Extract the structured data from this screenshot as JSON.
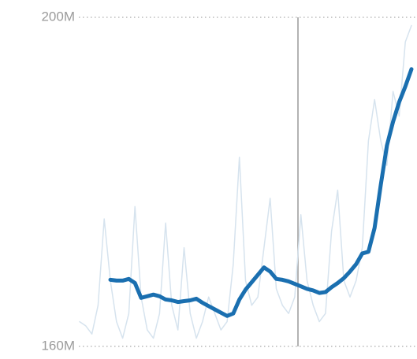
{
  "chart_data": {
    "type": "line",
    "categories": [
      null,
      null,
      null,
      null,
      null,
      null,
      null,
      null,
      null,
      null,
      null,
      null,
      null,
      null,
      null,
      null,
      null,
      null,
      null,
      null,
      null,
      null,
      null,
      null,
      null,
      null,
      null,
      null,
      null,
      null,
      null,
      null,
      null,
      null,
      null,
      null,
      null,
      null,
      null,
      null,
      null,
      null,
      null,
      null,
      null,
      null,
      null,
      null,
      null,
      null,
      null,
      null,
      null,
      null,
      null
    ],
    "series": [
      {
        "color": "#d6e3ee",
        "values": [
          163,
          162.5,
          161.5,
          165,
          175.5,
          168,
          163,
          161,
          164,
          177,
          166,
          162,
          161,
          164,
          175,
          165,
          162,
          172,
          164,
          161,
          163,
          166,
          164,
          162,
          163,
          170,
          183,
          168,
          165,
          166,
          172,
          178,
          167,
          165,
          164,
          166,
          176,
          168,
          165,
          163,
          164,
          174,
          179,
          168,
          166,
          168,
          172,
          185,
          190,
          185,
          182,
          191,
          188,
          197,
          199
        ]
      },
      {
        "color": "#1a6fb0",
        "values": [
          null,
          null,
          null,
          null,
          null,
          168.1,
          168,
          168,
          168.2,
          167.7,
          165.9,
          166.1,
          166.3,
          166.1,
          165.7,
          165.6,
          165.4,
          165.5,
          165.6,
          165.8,
          165.3,
          164.9,
          164.5,
          164.1,
          163.7,
          164,
          165.7,
          166.9,
          167.8,
          168.7,
          169.6,
          169.1,
          168.2,
          168.1,
          167.9,
          167.6,
          167.3,
          167,
          166.8,
          166.5,
          166.6,
          167.2,
          167.7,
          168.3,
          169.1,
          170,
          171.3,
          171.5,
          174.4,
          179.6,
          184.4,
          187.3,
          189.7,
          191.6,
          193.7
        ]
      }
    ],
    "ylim": [
      160,
      200
    ],
    "yticks": [
      {
        "value": 160,
        "label": "160M"
      },
      {
        "value": 200,
        "label": "200M"
      }
    ],
    "grid": true
  }
}
